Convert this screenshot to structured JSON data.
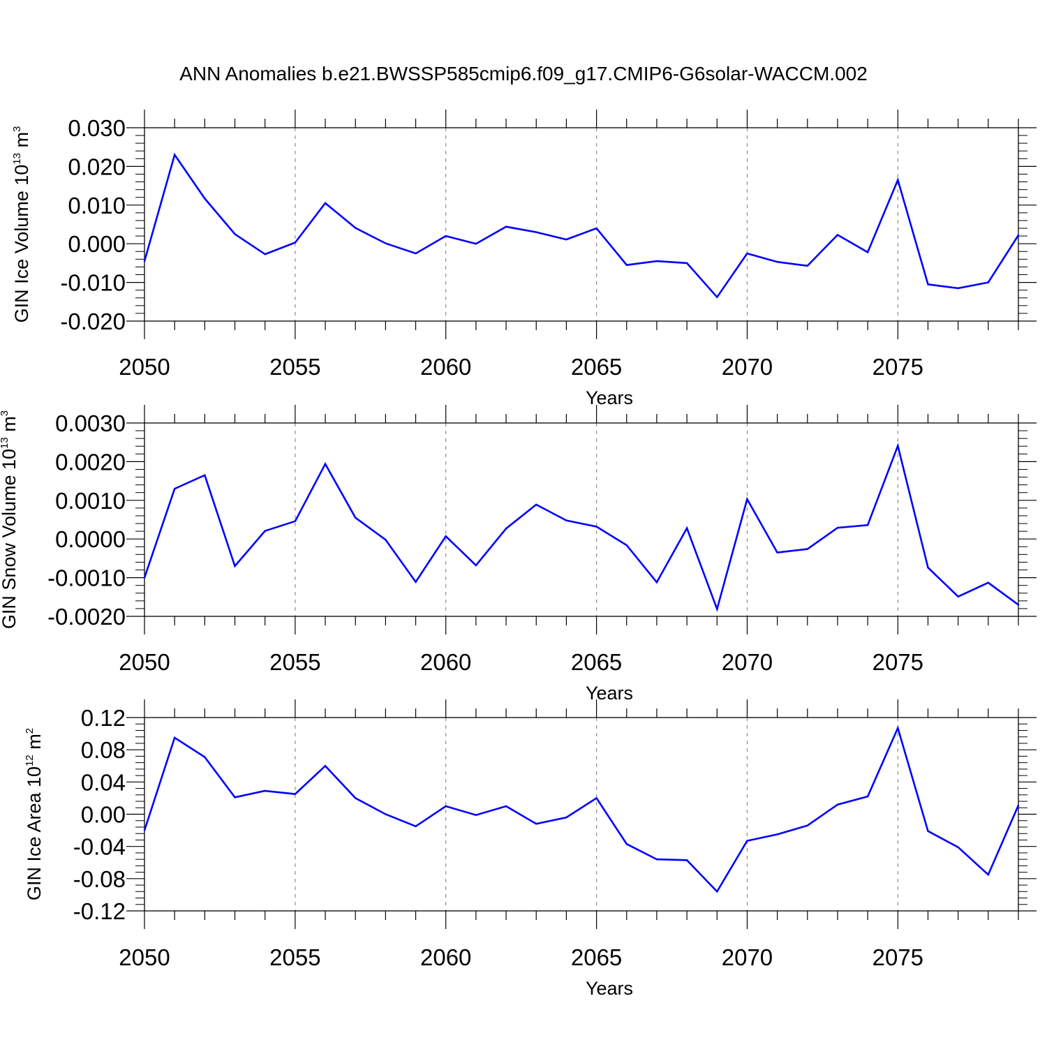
{
  "title": "ANN Anomalies b.e21.BWSSP585cmip6.f09_g17.CMIP6-G6solar-WACCM.002",
  "line_color": "#0000ff",
  "chart_data": [
    {
      "type": "line",
      "xlabel": "Years",
      "ylabel_main": "GIN Ice Volume 10",
      "ylabel_exp": "13",
      "ylabel_unit": "m",
      "ylabel_unit_exp": "3",
      "xlim": [
        2050,
        2079
      ],
      "ylim": [
        -0.02,
        0.03
      ],
      "xticks": [
        2050,
        2055,
        2060,
        2065,
        2070,
        2075
      ],
      "xtick_labels": [
        "2050",
        "2055",
        "2060",
        "2065",
        "2070",
        "2075"
      ],
      "yticks": [
        -0.02,
        -0.01,
        0.0,
        0.01,
        0.02,
        0.03
      ],
      "ytick_labels": [
        "-0.020",
        "-0.010",
        "0.000",
        "0.010",
        "0.020",
        "0.030"
      ],
      "x": [
        2050,
        2051,
        2052,
        2053,
        2054,
        2055,
        2056,
        2057,
        2058,
        2059,
        2060,
        2061,
        2062,
        2063,
        2064,
        2065,
        2066,
        2067,
        2068,
        2069,
        2070,
        2071,
        2072,
        2073,
        2074,
        2075,
        2076,
        2077,
        2078,
        2079
      ],
      "values": [
        -0.0045,
        0.023,
        0.0117,
        0.0025,
        -0.0027,
        0.0003,
        0.0105,
        0.0041,
        0.0001,
        -0.0025,
        0.002,
        0.0,
        0.0044,
        0.003,
        0.0011,
        0.004,
        -0.0055,
        -0.0045,
        -0.005,
        -0.0138,
        -0.0025,
        -0.0047,
        -0.0057,
        0.0023,
        -0.0022,
        0.0165,
        -0.0105,
        -0.0115,
        -0.01,
        0.0022
      ]
    },
    {
      "type": "line",
      "xlabel": "Years",
      "ylabel_main": "GIN Snow Volume 10",
      "ylabel_exp": "13",
      "ylabel_unit": "m",
      "ylabel_unit_exp": "3",
      "xlim": [
        2050,
        2079
      ],
      "ylim": [
        -0.002,
        0.003
      ],
      "xticks": [
        2050,
        2055,
        2060,
        2065,
        2070,
        2075
      ],
      "xtick_labels": [
        "2050",
        "2055",
        "2060",
        "2065",
        "2070",
        "2075"
      ],
      "yticks": [
        -0.002,
        -0.001,
        0.0,
        0.001,
        0.002,
        0.003
      ],
      "ytick_labels": [
        "-0.0020",
        "-0.0010",
        "0.0000",
        "0.0010",
        "0.0020",
        "0.0030"
      ],
      "x": [
        2050,
        2051,
        2052,
        2053,
        2054,
        2055,
        2056,
        2057,
        2058,
        2059,
        2060,
        2061,
        2062,
        2063,
        2064,
        2065,
        2066,
        2067,
        2068,
        2069,
        2070,
        2071,
        2072,
        2073,
        2074,
        2075,
        2076,
        2077,
        2078,
        2079
      ],
      "values": [
        -0.001,
        0.0013,
        0.00165,
        -0.0007,
        0.00021,
        0.00046,
        0.00194,
        0.00055,
        -2e-05,
        -0.00111,
        7e-05,
        -0.00068,
        0.00027,
        0.00089,
        0.00048,
        0.00032,
        -0.00016,
        -0.00112,
        0.00028,
        -0.00181,
        0.00103,
        -0.00035,
        -0.00026,
        0.00029,
        0.00036,
        0.00241,
        -0.00074,
        -0.00149,
        -0.00113,
        -0.0017
      ]
    },
    {
      "type": "line",
      "xlabel": "Years",
      "ylabel_main": "GIN Ice Area 10",
      "ylabel_exp": "12",
      "ylabel_unit": "m",
      "ylabel_unit_exp": "2",
      "xlim": [
        2050,
        2079
      ],
      "ylim": [
        -0.12,
        0.12
      ],
      "xticks": [
        2050,
        2055,
        2060,
        2065,
        2070,
        2075
      ],
      "xtick_labels": [
        "2050",
        "2055",
        "2060",
        "2065",
        "2070",
        "2075"
      ],
      "yticks": [
        -0.12,
        -0.08,
        -0.04,
        0.0,
        0.04,
        0.08,
        0.12
      ],
      "ytick_labels": [
        "-0.12",
        "-0.08",
        "-0.04",
        "0.00",
        "0.04",
        "0.08",
        "0.12"
      ],
      "x": [
        2050,
        2051,
        2052,
        2053,
        2054,
        2055,
        2056,
        2057,
        2058,
        2059,
        2060,
        2061,
        2062,
        2063,
        2064,
        2065,
        2066,
        2067,
        2068,
        2069,
        2070,
        2071,
        2072,
        2073,
        2074,
        2075,
        2076,
        2077,
        2078,
        2079
      ],
      "values": [
        -0.02,
        0.095,
        0.071,
        0.021,
        0.029,
        0.025,
        0.06,
        0.02,
        0.0,
        -0.015,
        0.01,
        -0.001,
        0.01,
        -0.012,
        -0.004,
        0.02,
        -0.037,
        -0.056,
        -0.057,
        -0.096,
        -0.033,
        -0.025,
        -0.014,
        0.012,
        0.022,
        0.107,
        -0.021,
        -0.041,
        -0.075,
        0.011
      ]
    }
  ]
}
